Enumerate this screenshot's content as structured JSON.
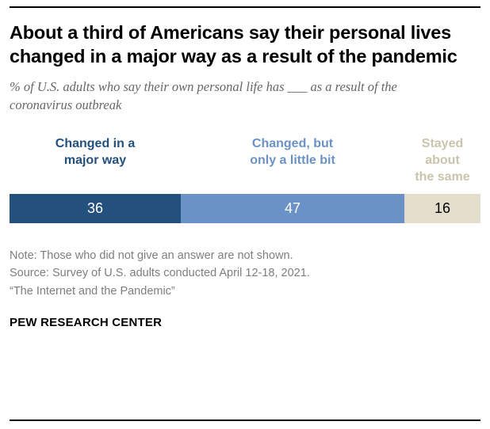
{
  "title": "About a third of Americans say their personal lives changed in a major way as a result of the pandemic",
  "subtitle": "% of U.S. adults who say their own personal life has ___ as a result of the coronavirus outbreak",
  "chart_data": {
    "type": "bar",
    "orientation": "horizontal-stacked",
    "categories": [
      "Changed in a major way",
      "Changed, but only a little bit",
      "Stayed about the same"
    ],
    "label_lines": [
      "Changed in a\nmajor way",
      "Changed, but\nonly a little bit",
      "Stayed about\nthe same"
    ],
    "values": [
      36,
      47,
      16
    ],
    "colors": [
      "#24507d",
      "#6b92c6",
      "#e2decb"
    ],
    "label_colors": [
      "#24507d",
      "#6b92c6",
      "#c9c4ab"
    ],
    "value_text_colors": [
      "#ffffff",
      "#ffffff",
      "#000000"
    ],
    "xlim": [
      0,
      99
    ],
    "grid": false,
    "legend_position": "above-bar"
  },
  "notes": {
    "note": "Note: Those who did not give an answer are not shown.",
    "source": "Source: Survey of U.S. adults conducted April 12-18, 2021.",
    "report": "“The Internet and the Pandemic”"
  },
  "footer": "PEW RESEARCH CENTER"
}
